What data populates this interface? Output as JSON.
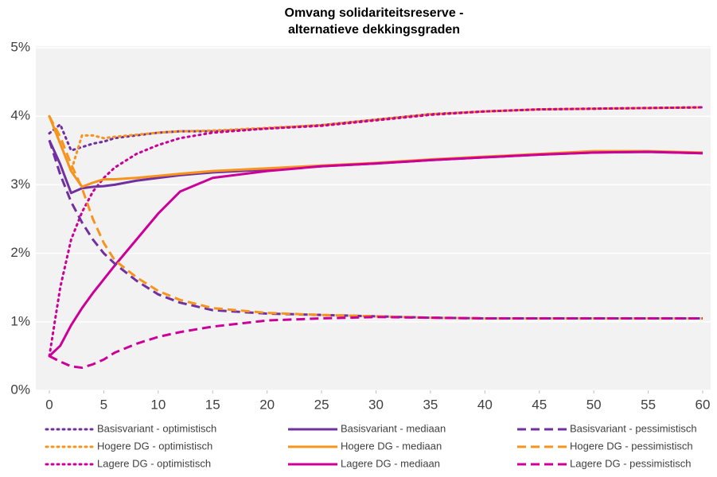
{
  "chart_data": {
    "type": "line",
    "title": [
      "Omvang solidariteitsreserve -",
      "alternatieve dekkingsgraden"
    ],
    "x": [
      0,
      1,
      2,
      3,
      4,
      5,
      6,
      8,
      10,
      12,
      15,
      20,
      25,
      30,
      35,
      40,
      45,
      50,
      55,
      60
    ],
    "xlim": [
      0,
      60
    ],
    "xticks": [
      0,
      5,
      10,
      15,
      20,
      25,
      30,
      35,
      40,
      45,
      50,
      55,
      60
    ],
    "ylim": [
      0,
      5
    ],
    "yticks": [
      {
        "value": 0,
        "label": "0%"
      },
      {
        "value": 1,
        "label": "1%"
      },
      {
        "value": 2,
        "label": "2%"
      },
      {
        "value": 3,
        "label": "3%"
      },
      {
        "value": 4,
        "label": "4%"
      },
      {
        "value": 5,
        "label": "5%"
      }
    ],
    "grid": true,
    "legend": "bottom",
    "series": [
      {
        "name": "Basisvariant - optimistisch",
        "color": "#7030a0",
        "style": "dotted",
        "values": [
          3.75,
          3.88,
          3.5,
          3.55,
          3.6,
          3.63,
          3.68,
          3.72,
          3.76,
          3.78,
          3.78,
          3.82,
          3.87,
          3.95,
          4.03,
          4.07,
          4.1,
          4.11,
          4.12,
          4.13
        ]
      },
      {
        "name": "Hogere DG - optimistisch",
        "color": "#f7941d",
        "style": "dotted",
        "values": [
          4.0,
          3.6,
          3.2,
          3.72,
          3.72,
          3.68,
          3.7,
          3.73,
          3.76,
          3.78,
          3.79,
          3.83,
          3.87,
          3.95,
          4.03,
          4.07,
          4.1,
          4.11,
          4.12,
          4.13
        ]
      },
      {
        "name": "Lagere DG - optimistisch",
        "color": "#cc0099",
        "style": "dotted",
        "values": [
          0.5,
          1.5,
          2.2,
          2.6,
          2.9,
          3.1,
          3.25,
          3.45,
          3.58,
          3.68,
          3.76,
          3.82,
          3.86,
          3.94,
          4.02,
          4.07,
          4.1,
          4.11,
          4.12,
          4.13
        ]
      },
      {
        "name": "Basisvariant - mediaan",
        "color": "#7030a0",
        "style": "solid",
        "values": [
          3.65,
          3.3,
          2.88,
          2.95,
          2.97,
          2.98,
          3.0,
          3.06,
          3.1,
          3.14,
          3.18,
          3.22,
          3.27,
          3.31,
          3.36,
          3.4,
          3.44,
          3.47,
          3.48,
          3.46
        ]
      },
      {
        "name": "Hogere DG - mediaan",
        "color": "#f7941d",
        "style": "solid",
        "values": [
          4.0,
          3.6,
          3.2,
          2.97,
          3.03,
          3.08,
          3.08,
          3.1,
          3.13,
          3.16,
          3.2,
          3.24,
          3.28,
          3.32,
          3.37,
          3.41,
          3.45,
          3.49,
          3.49,
          3.47
        ]
      },
      {
        "name": "Lagere DG - mediaan",
        "color": "#cc0099",
        "style": "solid",
        "values": [
          0.5,
          0.65,
          0.95,
          1.2,
          1.42,
          1.62,
          1.82,
          2.2,
          2.58,
          2.9,
          3.1,
          3.2,
          3.27,
          3.31,
          3.36,
          3.4,
          3.44,
          3.47,
          3.48,
          3.46
        ]
      },
      {
        "name": "Basisvariant - pessimistisch",
        "color": "#7030a0",
        "style": "dashed",
        "values": [
          3.65,
          3.15,
          2.75,
          2.45,
          2.2,
          2.0,
          1.85,
          1.6,
          1.4,
          1.28,
          1.17,
          1.12,
          1.1,
          1.08,
          1.06,
          1.05,
          1.05,
          1.05,
          1.05,
          1.05
        ]
      },
      {
        "name": "Hogere DG - pessimistisch",
        "color": "#f7941d",
        "style": "dashed",
        "values": [
          4.0,
          3.7,
          3.3,
          2.95,
          2.5,
          2.15,
          1.9,
          1.65,
          1.45,
          1.32,
          1.2,
          1.13,
          1.1,
          1.08,
          1.06,
          1.05,
          1.05,
          1.05,
          1.05,
          1.05
        ]
      },
      {
        "name": "Lagere DG - pessimistisch",
        "color": "#cc0099",
        "style": "dashed",
        "values": [
          0.5,
          0.42,
          0.35,
          0.33,
          0.38,
          0.45,
          0.55,
          0.68,
          0.78,
          0.85,
          0.93,
          1.02,
          1.05,
          1.07,
          1.06,
          1.05,
          1.05,
          1.05,
          1.05,
          1.05
        ]
      }
    ]
  }
}
